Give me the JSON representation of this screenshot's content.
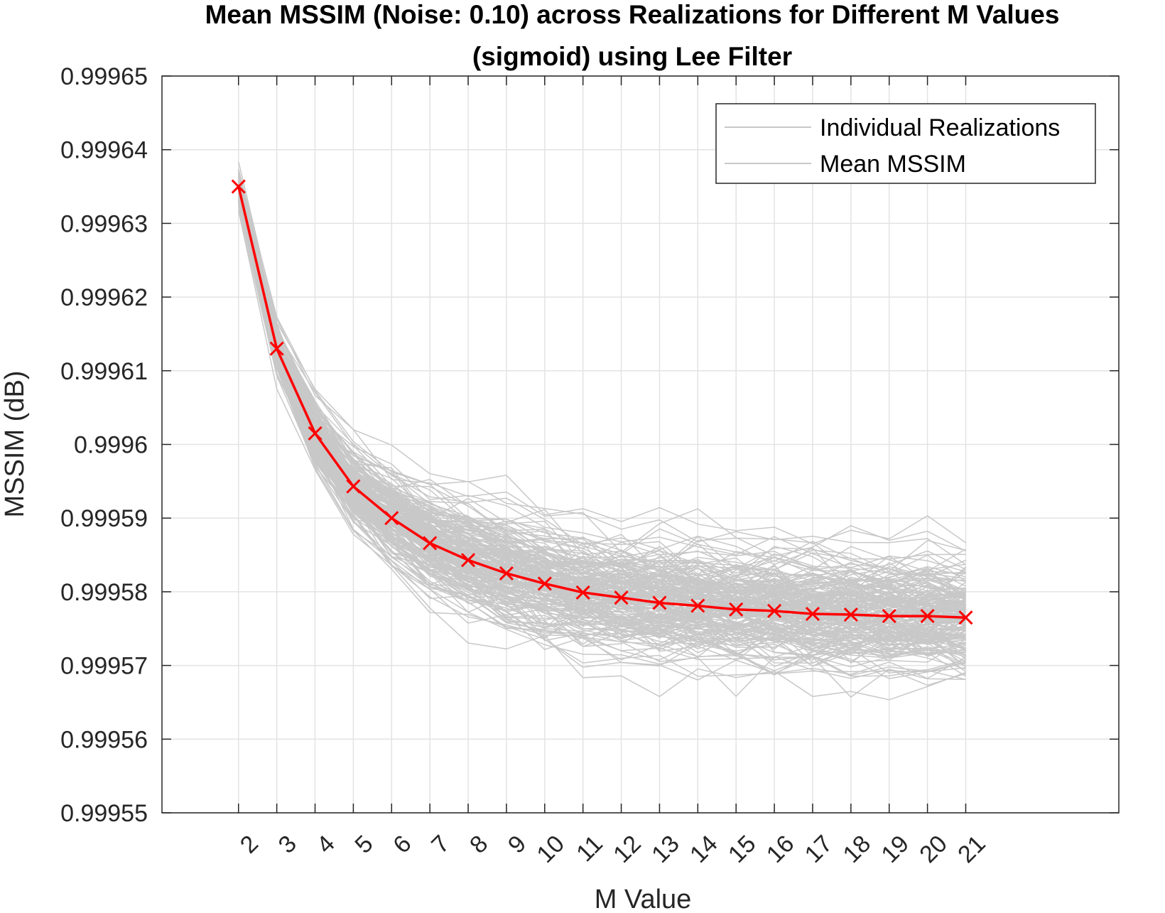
{
  "chart_data": {
    "type": "line",
    "title": [
      "Mean MSSIM (Noise: 0.10) across Realizations for Different M Values",
      "(sigmoid) using Lee Filter"
    ],
    "xlabel": "M Value",
    "ylabel": "MSSIM (dB)",
    "x": [
      2,
      3,
      4,
      5,
      6,
      7,
      8,
      9,
      10,
      11,
      12,
      13,
      14,
      15,
      16,
      17,
      18,
      19,
      20,
      21
    ],
    "xlim": [
      0,
      25
    ],
    "ylim": [
      0.99955,
      0.99965
    ],
    "y_ticks": [
      0.99955,
      0.99956,
      0.99957,
      0.99958,
      0.99959,
      0.9996,
      0.99961,
      0.99962,
      0.99963,
      0.99964,
      0.99965
    ],
    "y_tick_labels": [
      "0.99955",
      "0.99956",
      "0.99957",
      "0.99958",
      "0.99959",
      "0.9996",
      "0.99961",
      "0.99962",
      "0.99963",
      "0.99964",
      "0.99965"
    ],
    "x_tick_labels": [
      "2",
      "3",
      "4",
      "5",
      "6",
      "7",
      "8",
      "9",
      "10",
      "11",
      "12",
      "13",
      "14",
      "15",
      "16",
      "17",
      "18",
      "19",
      "20",
      "21"
    ],
    "grid": true,
    "legend": {
      "placement": "top-right",
      "entries": [
        "Individual Realizations",
        "Mean MSSIM"
      ]
    },
    "series": [
      {
        "name": "Mean MSSIM",
        "color": "#ff0000",
        "marker": "x",
        "values": [
          0.999635,
          0.999613,
          0.9996015,
          0.9995943,
          0.99959,
          0.9995866,
          0.9995843,
          0.9995825,
          0.9995811,
          0.9995799,
          0.9995792,
          0.9995785,
          0.9995781,
          0.9995776,
          0.9995774,
          0.999577,
          0.9995769,
          0.9995767,
          0.9995767,
          0.9995765
        ]
      }
    ],
    "realizations": {
      "name": "Individual Realizations",
      "color": "#c8c8c8",
      "count": 200,
      "y_range_at_start": [
        0.999627,
        0.999642
      ],
      "y_range_at_end": [
        0.999561,
        0.999592
      ]
    }
  }
}
